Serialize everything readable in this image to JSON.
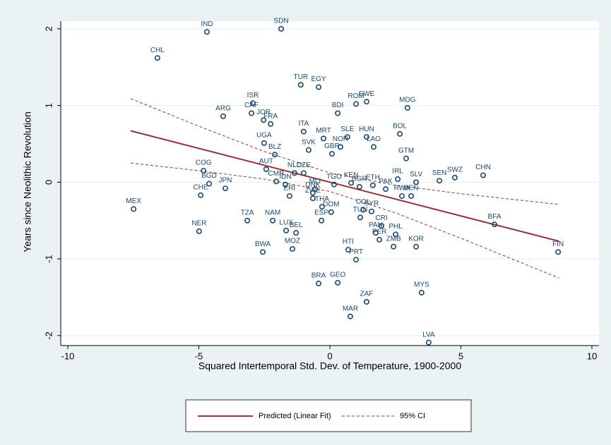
{
  "chart_data": {
    "type": "scatter",
    "xlabel": "Squared Intertemporal Std. Dev. of Temperature, 1900-2000",
    "ylabel": "Years since Neolithic Revolution",
    "xlim": [
      -10.27,
      10.27
    ],
    "ylim": [
      -2.13,
      2.1
    ],
    "xticks": [
      -10,
      -5,
      0,
      5,
      10
    ],
    "yticks": [
      -2,
      -1,
      0,
      1,
      2
    ],
    "grid": true,
    "points": {
      "color": "#1a476f",
      "labels": [
        "IND",
        "SDN",
        "CHL",
        "TUR",
        "EGY",
        "ISR",
        "CAF",
        "JOR",
        "FRA",
        "ARG",
        "ROM",
        "SWE",
        "BDI",
        "MDG",
        "ITA",
        "MRT",
        "SLE",
        "HUN",
        "BOL",
        "UGA",
        "SVK",
        "NOR",
        "LAO",
        "GBR",
        "GTM",
        "BLZ",
        "COG",
        "AUT",
        "NLD",
        "CZE",
        "IRL",
        "SLV",
        "SEN",
        "SWZ",
        "CHN",
        "BGD",
        "JPN",
        "CHE",
        "MEX",
        "CMR",
        "IDN",
        "ERI",
        "TGO",
        "KEN",
        "BGR",
        "ETH",
        "PAK",
        "RWA",
        "BEN",
        "MLI",
        "DNK",
        "ZWE",
        "THA",
        "DOM",
        "ESP",
        "TZA",
        "NAM",
        "NER",
        "LUX",
        "BEL",
        "COL",
        "SYR",
        "TUN",
        "CRI",
        "PAN",
        "PHL",
        "PER",
        "ZMB",
        "KOR",
        "BFA",
        "FIN",
        "BWA",
        "MOZ",
        "HTI",
        "PRT",
        "BRA",
        "GEO",
        "MYS",
        "ZAF",
        "MAR",
        "LVA"
      ],
      "x": [
        -4.69,
        -1.86,
        -6.58,
        -1.11,
        -0.43,
        -2.94,
        -2.99,
        -2.53,
        -2.26,
        -4.07,
        1.0,
        1.4,
        0.3,
        2.96,
        -1.0,
        -0.24,
        0.67,
        1.4,
        2.67,
        -2.51,
        -0.81,
        0.4,
        1.67,
        0.08,
        2.91,
        -2.1,
        -4.82,
        -2.43,
        -1.35,
        -1.0,
        2.59,
        3.29,
        4.18,
        4.77,
        5.85,
        -4.61,
        -3.99,
        -4.93,
        -7.49,
        -2.05,
        -1.7,
        -1.54,
        0.16,
        0.81,
        1.13,
        1.64,
        2.13,
        2.75,
        3.1,
        -0.57,
        -0.65,
        -0.65,
        -0.3,
        0.05,
        -0.32,
        -3.15,
        -2.18,
        -4.99,
        -1.67,
        -1.29,
        1.27,
        1.59,
        1.16,
        1.97,
        1.75,
        2.51,
        1.89,
        2.43,
        3.29,
        6.28,
        8.71,
        -2.56,
        -1.43,
        0.7,
        1.0,
        -0.43,
        0.3,
        3.5,
        1.4,
        0.78,
        3.77
      ],
      "values": [
        1.96,
        2.0,
        1.62,
        1.27,
        1.24,
        1.03,
        0.9,
        0.81,
        0.76,
        0.86,
        1.02,
        1.05,
        0.9,
        0.97,
        0.66,
        0.57,
        0.59,
        0.59,
        0.63,
        0.51,
        0.42,
        0.46,
        0.46,
        0.37,
        0.31,
        0.36,
        0.15,
        0.17,
        0.12,
        0.12,
        0.04,
        0.0,
        0.02,
        0.06,
        0.09,
        -0.02,
        -0.08,
        -0.17,
        -0.35,
        0.01,
        -0.03,
        -0.18,
        -0.03,
        -0.01,
        -0.06,
        -0.04,
        -0.09,
        -0.18,
        -0.18,
        -0.09,
        -0.14,
        -0.21,
        -0.32,
        -0.39,
        -0.5,
        -0.5,
        -0.5,
        -0.64,
        -0.63,
        -0.66,
        -0.36,
        -0.38,
        -0.46,
        -0.57,
        -0.66,
        -0.68,
        -0.75,
        -0.84,
        -0.84,
        -0.55,
        -0.91,
        -0.91,
        -0.87,
        -0.88,
        -1.01,
        -1.32,
        -1.31,
        -1.44,
        -1.56,
        -1.75,
        -2.09
      ]
    },
    "fit": {
      "name": "Predicted (Linear Fit)",
      "color": "#90353b",
      "x": [
        -7.6,
        8.75
      ],
      "values": [
        0.67,
        -0.77
      ]
    },
    "ci": {
      "name": "95% CI",
      "color": "#90353b",
      "x": [
        -7.6,
        -5,
        -2.5,
        0,
        2.5,
        5,
        8.75
      ],
      "upper": [
        1.09,
        0.73,
        0.4,
        0.12,
        -0.04,
        -0.15,
        -0.29
      ],
      "lower": [
        0.25,
        0.15,
        0.04,
        -0.12,
        -0.4,
        -0.73,
        -1.25
      ]
    }
  }
}
